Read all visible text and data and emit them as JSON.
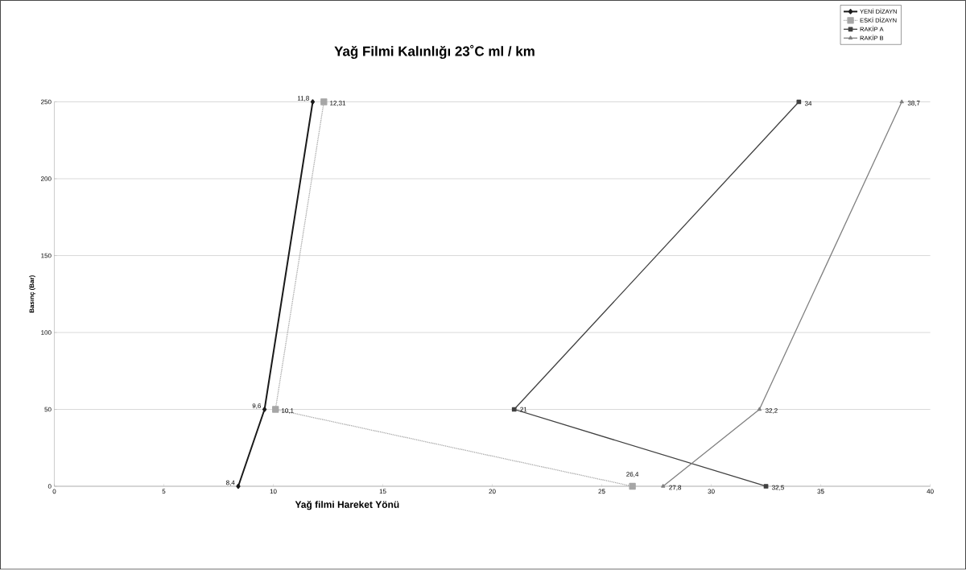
{
  "chart_data": {
    "type": "line",
    "title": "Yağ Filmi Kalınlığı 23˚C ml / km",
    "xlabel": "Yağ filmi     Hareket Yönü",
    "ylabel": "Basınç (Bar)",
    "xlim": [
      0,
      40
    ],
    "xticks": [
      0,
      5,
      10,
      15,
      20,
      25,
      30,
      35,
      40
    ],
    "ylim": [
      0,
      250
    ],
    "yticks": [
      0,
      50,
      100,
      150,
      200,
      250
    ],
    "grid": "y",
    "legend": "top right",
    "series": [
      {
        "name": "YENİ DİZAYN",
        "color": "#1a1a1a",
        "marker": "diamond",
        "line_style": "solid",
        "x": [
          8.4,
          9.6,
          11.8
        ],
        "values": [
          0,
          50,
          250
        ]
      },
      {
        "name": "ESKİ DİZAYN",
        "color": "#a6a6a6",
        "marker": "square",
        "line_style": "dotted",
        "x": [
          26.4,
          10.1,
          12.31
        ],
        "values": [
          0,
          50,
          250
        ]
      },
      {
        "name": "RAKİP A",
        "color": "#404040",
        "marker": "square",
        "line_style": "solid",
        "x": [
          32.5,
          21,
          34
        ],
        "values": [
          0,
          50,
          250
        ]
      },
      {
        "name": "RAKİP B",
        "color": "#808080",
        "marker": "triangle",
        "line_style": "solid",
        "x": [
          27.8,
          32.2,
          38.7
        ],
        "values": [
          0,
          50,
          250
        ]
      }
    ],
    "annotations": [
      {
        "text": "8,4",
        "x": 8.4,
        "y": 0
      },
      {
        "text": "9,6",
        "x": 9.6,
        "y": 50
      },
      {
        "text": "11,8",
        "x": 11.8,
        "y": 250
      },
      {
        "text": "26,4",
        "x": 26.4,
        "y": 0
      },
      {
        "text": "10,1",
        "x": 10.1,
        "y": 50
      },
      {
        "text": "12,31",
        "x": 12.31,
        "y": 250
      },
      {
        "text": "32,5",
        "x": 32.5,
        "y": 0
      },
      {
        "text": "21",
        "x": 21,
        "y": 50
      },
      {
        "text": "34",
        "x": 34,
        "y": 250
      },
      {
        "text": "27,8",
        "x": 27.8,
        "y": 0
      },
      {
        "text": "32,2",
        "x": 32.2,
        "y": 50
      },
      {
        "text": "38,7",
        "x": 38.7,
        "y": 250
      }
    ]
  }
}
